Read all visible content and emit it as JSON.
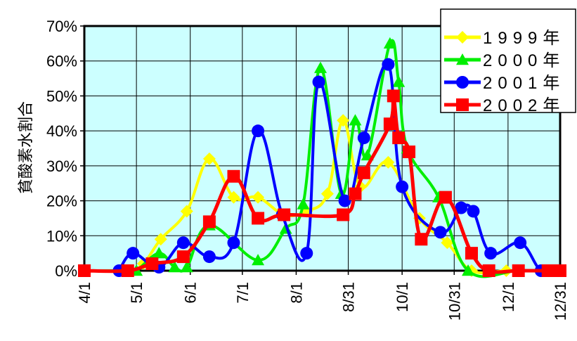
{
  "chart_data": {
    "type": "line",
    "title": "",
    "xlabel": "",
    "ylabel": "貧酸素水割合",
    "ylim": [
      0,
      70
    ],
    "grid": true,
    "legend_position": "top-right",
    "plot_background": "#ccffff",
    "x_ticks": [
      "4/1",
      "5/1",
      "6/1",
      "7/1",
      "8/1",
      "8/31",
      "10/1",
      "10/31",
      "12/1",
      "12/31"
    ],
    "y_ticks": [
      "0%",
      "10%",
      "20%",
      "30%",
      "40%",
      "50%",
      "60%",
      "70%"
    ],
    "series": [
      {
        "name": "1999年",
        "color": "#ffff00",
        "marker": "diamond",
        "points": [
          [
            "4/1",
            0
          ],
          [
            "4/26",
            0
          ],
          [
            "5/5",
            2
          ],
          [
            "5/15",
            9
          ],
          [
            "5/30",
            17
          ],
          [
            "6/12",
            32
          ],
          [
            "6/26",
            21
          ],
          [
            "7/10",
            21
          ],
          [
            "7/25",
            16
          ],
          [
            "8/7",
            17
          ],
          [
            "8/19",
            22
          ],
          [
            "8/28",
            43
          ],
          [
            "9/7",
            24
          ],
          [
            "9/23",
            31
          ],
          [
            "10/11",
            15
          ],
          [
            "10/27",
            8
          ],
          [
            "11/10",
            0
          ],
          [
            "11/30",
            0
          ],
          [
            "12/20",
            0
          ],
          [
            "12/31",
            0
          ]
        ]
      },
      {
        "name": "2000年",
        "color": "#00ee00",
        "marker": "triangle",
        "points": [
          [
            "4/1",
            0
          ],
          [
            "4/26",
            0
          ],
          [
            "5/1",
            0
          ],
          [
            "5/14",
            5
          ],
          [
            "5/23",
            1
          ],
          [
            "5/30",
            1
          ],
          [
            "6/12",
            13
          ],
          [
            "7/10",
            3
          ],
          [
            "7/26",
            12
          ],
          [
            "8/5",
            19
          ],
          [
            "8/15",
            58
          ],
          [
            "8/27",
            22
          ],
          [
            "9/4",
            43
          ],
          [
            "9/11",
            33
          ],
          [
            "9/24",
            65
          ],
          [
            "9/29",
            54
          ],
          [
            "10/4",
            35
          ],
          [
            "10/22",
            21
          ],
          [
            "11/8",
            0
          ],
          [
            "12/7",
            0
          ],
          [
            "12/31",
            0
          ]
        ]
      },
      {
        "name": "2001年",
        "color": "#0000ff",
        "marker": "circle",
        "points": [
          [
            "4/21",
            0
          ],
          [
            "4/29",
            5
          ],
          [
            "5/14",
            1
          ],
          [
            "5/28",
            8
          ],
          [
            "6/12",
            4
          ],
          [
            "6/26",
            8
          ],
          [
            "7/10",
            40
          ],
          [
            "7/24",
            16
          ],
          [
            "8/7",
            5
          ],
          [
            "8/14",
            54
          ],
          [
            "8/29",
            20
          ],
          [
            "9/9",
            38
          ],
          [
            "9/23",
            59
          ],
          [
            "10/1",
            24
          ],
          [
            "10/23",
            11
          ],
          [
            "11/4",
            18
          ],
          [
            "11/11",
            17
          ],
          [
            "11/21",
            5
          ],
          [
            "12/8",
            8
          ],
          [
            "12/20",
            0
          ],
          [
            "12/31",
            0
          ]
        ]
      },
      {
        "name": "2002年",
        "color": "#ff0000",
        "marker": "square",
        "points": [
          [
            "4/1",
            0
          ],
          [
            "4/26",
            0
          ],
          [
            "5/10",
            2
          ],
          [
            "5/28",
            4
          ],
          [
            "6/12",
            14
          ],
          [
            "6/26",
            27
          ],
          [
            "7/10",
            15
          ],
          [
            "7/25",
            16
          ],
          [
            "8/28",
            16
          ],
          [
            "9/4",
            22
          ],
          [
            "9/9",
            28
          ],
          [
            "9/24",
            42
          ],
          [
            "9/26",
            50
          ],
          [
            "9/29",
            38
          ],
          [
            "10/5",
            34
          ],
          [
            "10/12",
            9
          ],
          [
            "10/26",
            21
          ],
          [
            "11/10",
            5
          ],
          [
            "11/20",
            0
          ],
          [
            "12/7",
            0
          ],
          [
            "12/24",
            0
          ],
          [
            "12/31",
            0
          ]
        ]
      }
    ]
  }
}
